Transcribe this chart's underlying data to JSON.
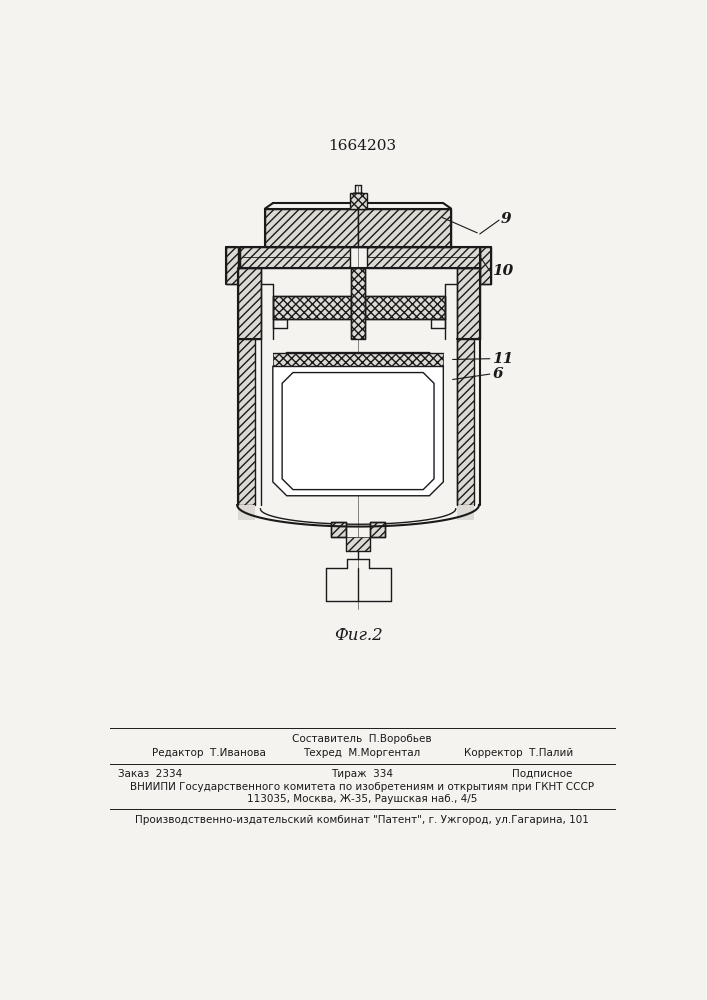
{
  "title": "1664203",
  "fig_label": "Фиг.2",
  "bg": "#f5f3f0",
  "black": "#1a1a1a",
  "label_9": "9",
  "label_10": "10",
  "label_11": "11",
  "label_6": "6",
  "footer_col1_row1": "",
  "footer_col2_row1": "Составитель  П.Воробьев",
  "footer_col3_row1": "",
  "footer_col1_row2": "Редактор  Т.Иванова",
  "footer_col2_row2": "Техред  М.Моргентал",
  "footer_col3_row2": "Корректор  Т.Палий",
  "footer_zakaz": "Заказ  2334",
  "footer_tirazh": "Тираж  334",
  "footer_podp": "Подписное",
  "footer_vniip1": "ВНИИПИ Государственного комитета по изобретениям и открытиям при ГКНТ СССР",
  "footer_vniip2": "113035, Москва, Ж-35, Раушская наб., 4/5",
  "footer_patent": "Производственно-издательский комбинат \"Патент\", г. Ужгород, ул.Гагарина, 101"
}
